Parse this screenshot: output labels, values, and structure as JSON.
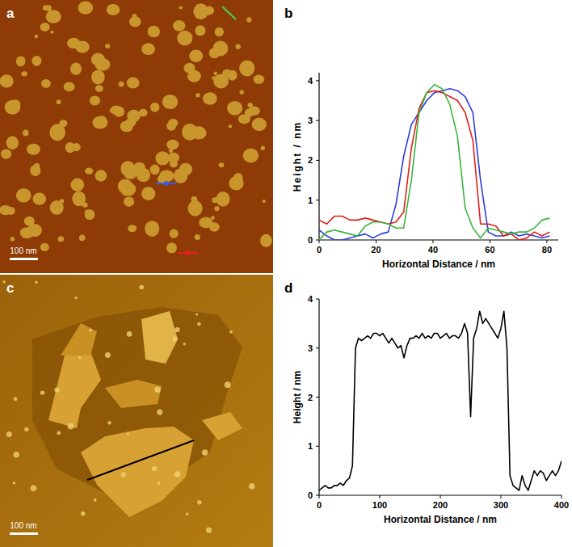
{
  "panels": [
    {
      "label": "a",
      "scale_bar": "100 nm"
    },
    {
      "label": "c",
      "scale_bar": "100 nm"
    }
  ],
  "chart_data": [
    {
      "label": "b",
      "type": "line",
      "x_label": "Horizontal Distance / nm",
      "y_label": "Height / nm",
      "x": [
        0,
        2.7,
        5.4,
        8.1,
        10.8,
        13.5,
        16.2,
        18.9,
        21.6,
        24.3,
        27,
        29.7,
        32.4,
        35.1,
        37.8,
        40.5,
        43.2,
        45.9,
        48.6,
        51.3,
        54,
        56.7,
        59.4,
        62.1,
        64.8,
        67.5,
        70.2,
        72.9,
        75.6,
        78.3,
        81
      ],
      "series": [
        {
          "color": "#2b3fd8",
          "values": [
            0.25,
            0.1,
            0,
            0,
            0.05,
            0.1,
            0.15,
            0.05,
            0.15,
            0.2,
            0.9,
            2.1,
            2.9,
            3.2,
            3.5,
            3.7,
            3.75,
            3.8,
            3.75,
            3.6,
            3.2,
            1.5,
            0.2,
            0.1,
            0.1,
            0.2,
            0.1,
            0.15,
            0.1,
            0.05,
            0.1
          ]
        },
        {
          "color": "#e0201a",
          "values": [
            0.5,
            0.4,
            0.6,
            0.6,
            0.5,
            0.5,
            0.55,
            0.5,
            0.45,
            0.4,
            0.45,
            0.7,
            2.3,
            3.3,
            3.7,
            3.75,
            3.7,
            3.6,
            3.5,
            3.2,
            2.5,
            0.4,
            0.4,
            0.35,
            0.1,
            0.15,
            0,
            0.05,
            0.2,
            0.1,
            0.2
          ]
        },
        {
          "color": "#3cb43c",
          "values": [
            0,
            0.2,
            0.25,
            0.2,
            0.15,
            0.1,
            0.35,
            0.45,
            0.45,
            0.4,
            0.3,
            0.3,
            1.5,
            3.2,
            3.7,
            3.9,
            3.8,
            3.4,
            2.6,
            0.8,
            0.3,
            0.05,
            0.3,
            0.25,
            0.2,
            0.15,
            0.2,
            0.2,
            0.3,
            0.5,
            0.55
          ]
        }
      ],
      "xlim": [
        0,
        84
      ],
      "ylim": [
        0,
        4.2
      ],
      "xticks": [
        0,
        20,
        40,
        60,
        80
      ],
      "yticks": [
        0,
        1,
        2,
        3,
        4
      ]
    },
    {
      "label": "d",
      "type": "line",
      "x_label": "Horizontal Distance / nm",
      "y_label": "Height / nm",
      "x": [
        0,
        5,
        10,
        15,
        20,
        25,
        30,
        35,
        40,
        45,
        50,
        55,
        60,
        65,
        70,
        75,
        80,
        85,
        90,
        95,
        100,
        105,
        110,
        115,
        120,
        125,
        130,
        135,
        140,
        145,
        150,
        155,
        160,
        165,
        170,
        175,
        180,
        185,
        190,
        195,
        200,
        205,
        210,
        215,
        220,
        225,
        230,
        235,
        240,
        245,
        250,
        255,
        260,
        265,
        270,
        275,
        280,
        285,
        290,
        295,
        300,
        305,
        310,
        315,
        320,
        325,
        330,
        335,
        340,
        345,
        350,
        355,
        360,
        365,
        370,
        375,
        380,
        385,
        390,
        395,
        400
      ],
      "series": [
        {
          "color": "#000000",
          "values": [
            0.1,
            0.15,
            0.2,
            0.15,
            0.15,
            0.2,
            0.2,
            0.25,
            0.2,
            0.3,
            0.35,
            0.6,
            3.0,
            3.2,
            3.15,
            3.2,
            3.25,
            3.2,
            3.3,
            3.3,
            3.25,
            3.3,
            3.2,
            3.1,
            3.2,
            3.1,
            3.0,
            3.05,
            2.8,
            3.05,
            3.2,
            3.2,
            3.25,
            3.2,
            3.3,
            3.2,
            3.25,
            3.2,
            3.3,
            3.3,
            3.2,
            3.25,
            3.3,
            3.2,
            3.25,
            3.25,
            3.2,
            3.3,
            3.5,
            3.3,
            1.6,
            3.2,
            3.4,
            3.75,
            3.5,
            3.6,
            3.5,
            3.4,
            3.3,
            3.2,
            3.4,
            3.75,
            3.0,
            0.4,
            0.2,
            0.15,
            0.1,
            0.4,
            0.2,
            0.1,
            0.3,
            0.5,
            0.4,
            0.5,
            0.45,
            0.3,
            0.4,
            0.5,
            0.4,
            0.5,
            0.7
          ]
        }
      ],
      "xlim": [
        0,
        400
      ],
      "ylim": [
        0,
        4
      ],
      "xticks": [
        0,
        100,
        200,
        300,
        400
      ],
      "yticks": [
        0,
        1,
        2,
        3,
        4
      ]
    }
  ]
}
